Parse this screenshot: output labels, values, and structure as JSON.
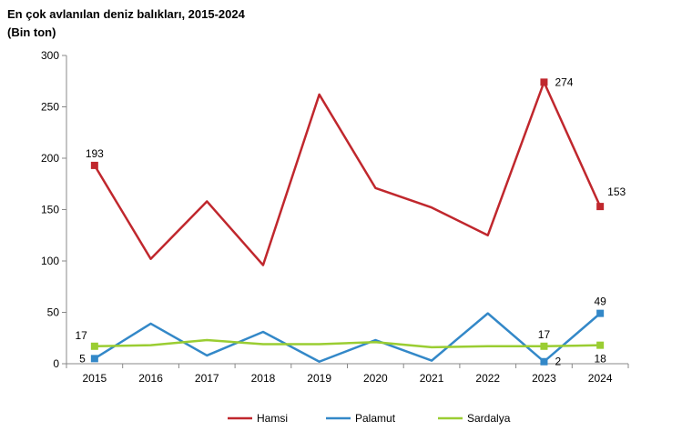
{
  "chart_data": {
    "type": "line",
    "title": "En çok avlanılan deniz balıkları, 2015-2024",
    "subtitle": "(Bin ton)",
    "xlabel": "",
    "ylabel": "",
    "categories": [
      "2015",
      "2016",
      "2017",
      "2018",
      "2019",
      "2020",
      "2021",
      "2022",
      "2023",
      "2024"
    ],
    "ylim": [
      0,
      300
    ],
    "yticks": [
      0,
      50,
      100,
      150,
      200,
      250,
      300
    ],
    "grid": false,
    "legend": "bottom",
    "series": [
      {
        "name": "Hamsi",
        "color": "#C0272D",
        "values": [
          193,
          102,
          158,
          96,
          262,
          171,
          152,
          125,
          274,
          153
        ]
      },
      {
        "name": "Palamut",
        "color": "#3388C8",
        "values": [
          5,
          39,
          8,
          31,
          2,
          23,
          3,
          49,
          2,
          49
        ]
      },
      {
        "name": "Sardalya",
        "color": "#9ACD32",
        "values": [
          17,
          18,
          23,
          19,
          19,
          21,
          16,
          17,
          17,
          18
        ]
      }
    ],
    "data_labels": [
      {
        "series": 0,
        "index": 0,
        "text": "193",
        "pos": "above"
      },
      {
        "series": 0,
        "index": 8,
        "text": "274",
        "pos": "right"
      },
      {
        "series": 0,
        "index": 9,
        "text": "153",
        "pos": "above-right"
      },
      {
        "series": 1,
        "index": 0,
        "text": "5",
        "pos": "left"
      },
      {
        "series": 1,
        "index": 8,
        "text": "2",
        "pos": "right"
      },
      {
        "series": 1,
        "index": 9,
        "text": "49",
        "pos": "above"
      },
      {
        "series": 2,
        "index": 0,
        "text": "17",
        "pos": "above-left"
      },
      {
        "series": 2,
        "index": 8,
        "text": "17",
        "pos": "above"
      },
      {
        "series": 2,
        "index": 9,
        "text": "18",
        "pos": "below"
      }
    ],
    "markers_at": [
      0,
      8,
      9
    ]
  }
}
